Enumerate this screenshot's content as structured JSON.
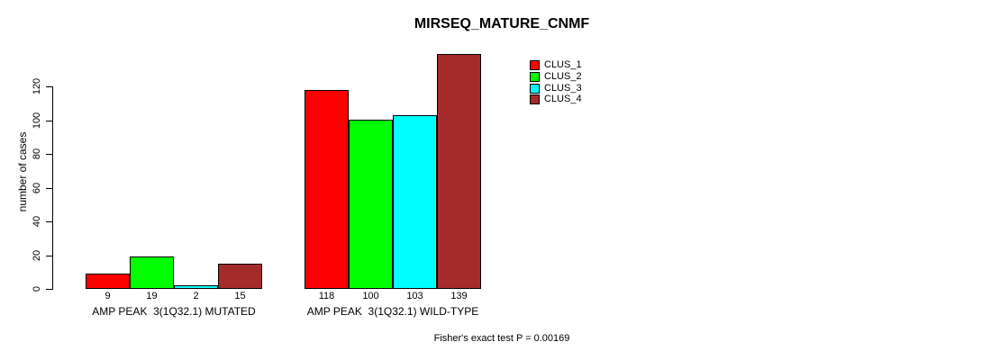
{
  "title": "MIRSEQ_MATURE_CNMF",
  "chart_data": {
    "type": "bar",
    "title": "MIRSEQ_MATURE_CNMF",
    "xlabel": "",
    "ylabel": "number of cases",
    "ylim": [
      0,
      120
    ],
    "y_ticks": [
      0,
      20,
      40,
      60,
      80,
      100,
      120
    ],
    "grid": false,
    "legend_position": "top-right",
    "categories": [
      "AMP PEAK  3(1Q32.1) MUTATED",
      "AMP PEAK  3(1Q32.1) WILD-TYPE"
    ],
    "series": [
      {
        "name": "CLUS_1",
        "color": "#FF0000",
        "values": [
          9,
          118
        ]
      },
      {
        "name": "CLUS_2",
        "color": "#00FF00",
        "values": [
          19,
          100
        ]
      },
      {
        "name": "CLUS_3",
        "color": "#00FFFF",
        "values": [
          2,
          103
        ]
      },
      {
        "name": "CLUS_4",
        "color": "#A52A2A",
        "values": [
          15,
          139
        ]
      }
    ],
    "annotation": "Fisher's exact test P = 0.00169"
  }
}
